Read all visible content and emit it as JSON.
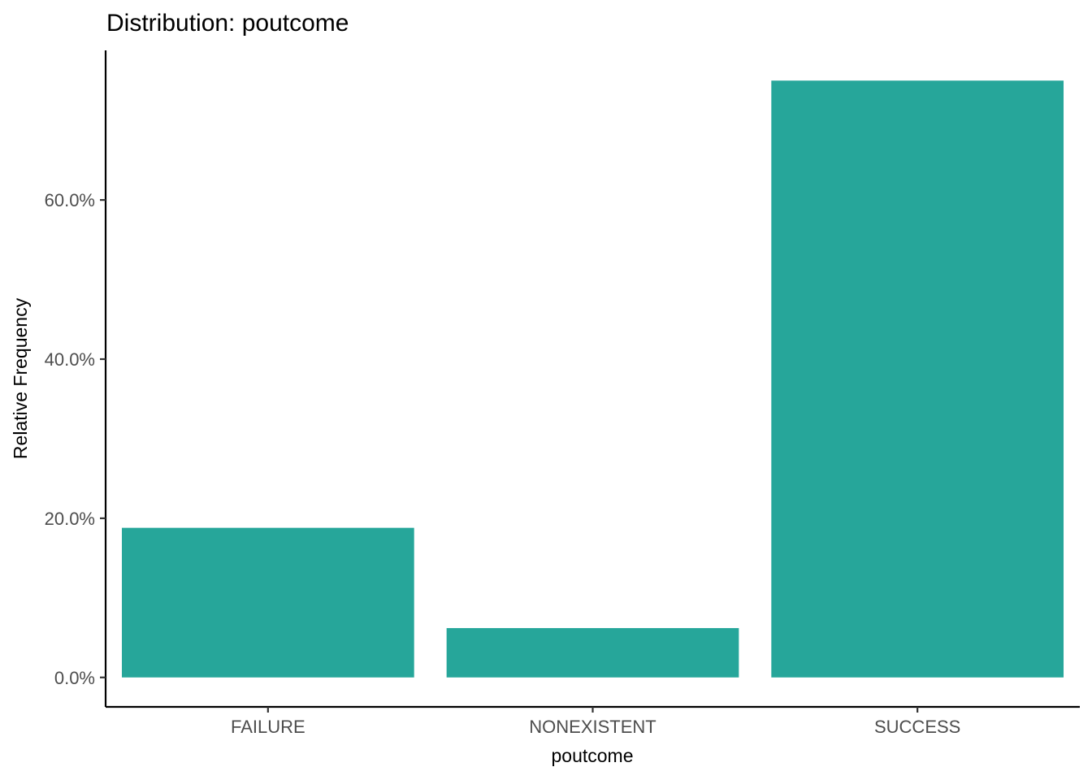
{
  "chart_data": {
    "type": "bar",
    "title": "Distribution: poutcome",
    "xlabel": "poutcome",
    "ylabel": "Relative Frequency",
    "categories": [
      "FAILURE",
      "NONEXISTENT",
      "SUCCESS"
    ],
    "values": [
      18.8,
      6.2,
      75.0
    ],
    "ylim": [
      -3.7,
      78.8
    ],
    "yticks": [
      0,
      20,
      40,
      60
    ],
    "ytick_labels": [
      "0.0%",
      "20.0%",
      "40.0%",
      "60.0%"
    ],
    "bar_color": "#26A69A",
    "grid": false,
    "legend": "none"
  }
}
